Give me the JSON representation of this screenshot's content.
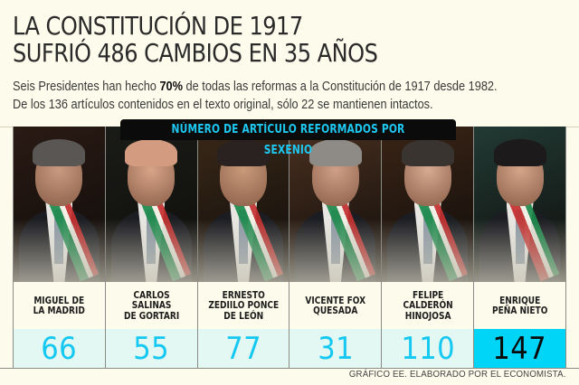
{
  "header": {
    "title_line1": "LA CONSTITUCIÓN DE 1917",
    "title_line2": "SUFRIÓ 486 CAMBIOS EN 35 AÑOS",
    "subtitle_line1_pre": "Seis Presidentes han hecho ",
    "subtitle_line1_bold": "70%",
    "subtitle_line1_post": " de todas las reformas a la Constitución de 1917 desde 1982.",
    "subtitle_line2": "De los 136 artículos contenidos en el texto original, sólo 22 se mantienen intactos."
  },
  "banner": {
    "label": "NÚMERO DE ARTÍCULO REFORMADOS POR SEXENIO"
  },
  "presidents": [
    {
      "name": "MIGUEL DE\nLA MADRID",
      "value": "66",
      "skin": "#c89a80",
      "hair": "#5a5654",
      "bg": "#2a1a14",
      "sash": "green"
    },
    {
      "name": "CARLOS\nSALINAS\nDE GORTARI",
      "value": "55",
      "skin": "#d8a488",
      "hair": "#d39c80",
      "bg": "#1a1c18",
      "sash": "green"
    },
    {
      "name": "ERNESTO\nZEDIILO PONCE\nDE LEÓN",
      "value": "77",
      "skin": "#c9997a",
      "hair": "#2a2220",
      "bg": "#3a2818",
      "sash": "green"
    },
    {
      "name": "VICENTE FOX\nQUESADA",
      "value": "31",
      "skin": "#cf9f86",
      "hair": "#8e8a86",
      "bg": "#4a3020",
      "sash": "green"
    },
    {
      "name": "FELIPE\nCALDERÓN\nHINOJOSA",
      "value": "110",
      "skin": "#d6aa90",
      "hair": "#3a3430",
      "bg": "#3a2416",
      "sash": "green"
    },
    {
      "name": "ENRIQUE\nPEÑA NIETO",
      "value": "147",
      "skin": "#d4a488",
      "hair": "#1c1a1a",
      "bg": "#223a34",
      "sash": "red"
    }
  ],
  "credit": "GRÁFICO EE. ELABORADO POR EL ECONOMISTA.",
  "colors": {
    "background": "#fdfbeb",
    "accent_cyan": "#14c8f2",
    "highlight_cell": "#00d4f7",
    "value_cell": "#e3f8f3",
    "banner_bg": "#0b0b0b"
  },
  "chart_data": {
    "type": "table",
    "title": "LA CONSTITUCIÓN DE 1917 SUFRIÓ 486 CAMBIOS EN 35 AÑOS",
    "subtitle": "Seis Presidentes han hecho 70% de todas las reformas a la Constitución de 1917 desde 1982. De los 136 artículos contenidos en el texto original, sólo 22 se mantienen intactos.",
    "xlabel": "NÚMERO DE ARTÍCULO REFORMADOS POR SEXENIO",
    "categories": [
      "Miguel de la Madrid",
      "Carlos Salinas de Gortari",
      "Ernesto Zediilo Ponce de León",
      "Vicente Fox Quesada",
      "Felipe Calderón Hinojosa",
      "Enrique Peña Nieto"
    ],
    "values": [
      66,
      55,
      77,
      31,
      110,
      147
    ],
    "highlight": "Enrique Peña Nieto",
    "source": "GRÁFICO EE. ELABORADO POR EL ECONOMISTA."
  }
}
